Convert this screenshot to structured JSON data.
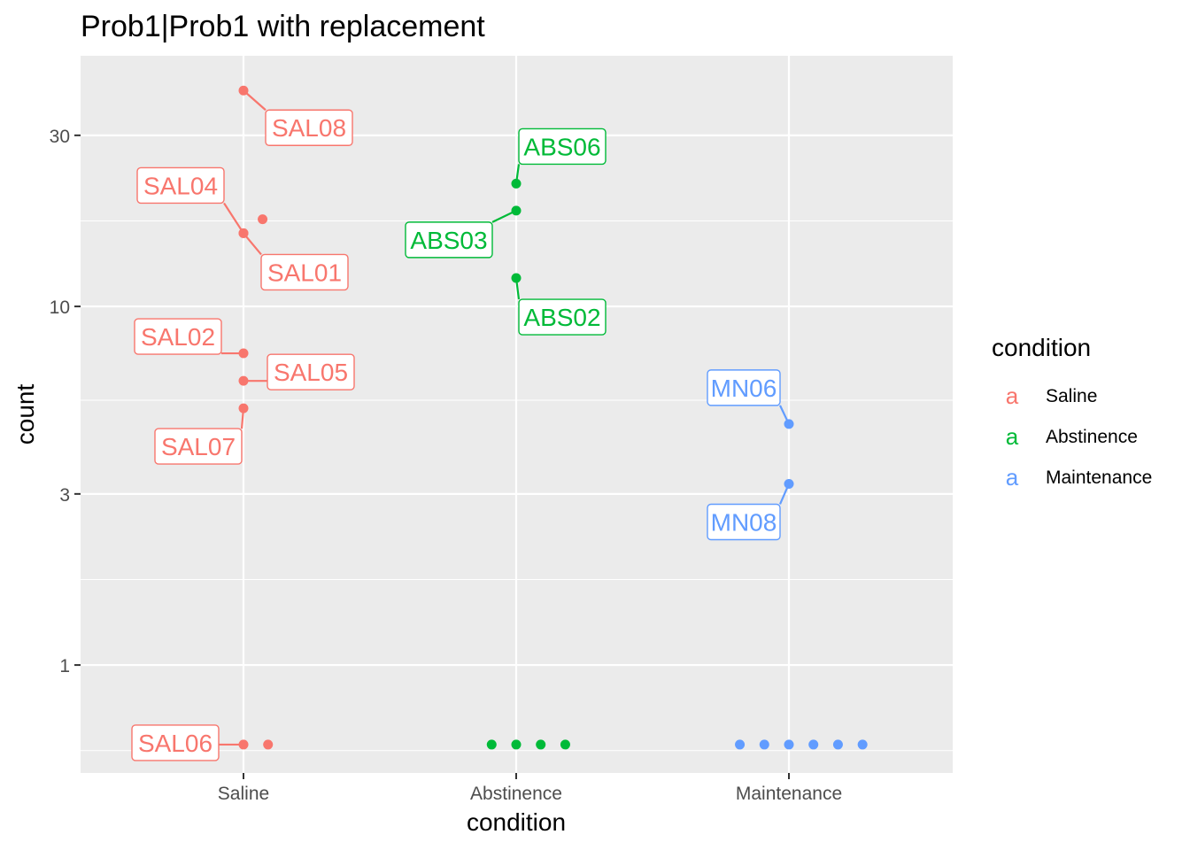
{
  "chart_data": {
    "type": "scatter",
    "title": "Prob1|Prob1 with replacement",
    "xlabel": "condition",
    "ylabel": "count",
    "y_scale": "log",
    "ylim": [
      0.5,
      50
    ],
    "y_ticks": [
      "1",
      "3",
      "10",
      "30"
    ],
    "categories": [
      "Saline",
      "Abstinence",
      "Maintenance"
    ],
    "legend": {
      "title": "condition",
      "position": "right",
      "key_glyph": "a",
      "entries": [
        "Saline",
        "Abstinence",
        "Maintenance"
      ]
    },
    "colors": {
      "Saline": "#F8766D",
      "Abstinence": "#00BA38",
      "Maintenance": "#619CFF",
      "panel_background": "#EBEBEB",
      "gridline": "#FFFFFF"
    },
    "series": [
      {
        "name": "Saline",
        "points": [
          {
            "category": "Saline",
            "jitter": 0,
            "y": 40,
            "label": "SAL08"
          },
          {
            "category": "Saline",
            "jitter": 0,
            "y": 16,
            "label": "SAL04"
          },
          {
            "category": "Saline",
            "jitter": 0,
            "y": 16,
            "label": "SAL01"
          },
          {
            "category": "Saline",
            "jitter": 0.07,
            "y": 17.5,
            "label": ""
          },
          {
            "category": "Saline",
            "jitter": 0,
            "y": 7.4,
            "label": "SAL02"
          },
          {
            "category": "Saline",
            "jitter": 0,
            "y": 6.2,
            "label": "SAL05"
          },
          {
            "category": "Saline",
            "jitter": 0,
            "y": 5.2,
            "label": "SAL07"
          },
          {
            "category": "Saline",
            "jitter": 0,
            "y": 0.6,
            "label": "SAL06"
          },
          {
            "category": "Saline",
            "jitter": 0.09,
            "y": 0.6,
            "label": ""
          }
        ]
      },
      {
        "name": "Abstinence",
        "points": [
          {
            "category": "Abstinence",
            "jitter": 0,
            "y": 22,
            "label": "ABS06"
          },
          {
            "category": "Abstinence",
            "jitter": 0,
            "y": 18.5,
            "label": "ABS03"
          },
          {
            "category": "Abstinence",
            "jitter": 0,
            "y": 12,
            "label": "ABS02"
          },
          {
            "category": "Abstinence",
            "jitter": -0.09,
            "y": 0.6,
            "label": ""
          },
          {
            "category": "Abstinence",
            "jitter": 0,
            "y": 0.6,
            "label": ""
          },
          {
            "category": "Abstinence",
            "jitter": 0.09,
            "y": 0.6,
            "label": ""
          },
          {
            "category": "Abstinence",
            "jitter": 0.18,
            "y": 0.6,
            "label": ""
          }
        ]
      },
      {
        "name": "Maintenance",
        "points": [
          {
            "category": "Maintenance",
            "jitter": 0,
            "y": 4.7,
            "label": "MN06"
          },
          {
            "category": "Maintenance",
            "jitter": 0,
            "y": 3.2,
            "label": "MN08"
          },
          {
            "category": "Maintenance",
            "jitter": -0.18,
            "y": 0.6,
            "label": ""
          },
          {
            "category": "Maintenance",
            "jitter": -0.09,
            "y": 0.6,
            "label": ""
          },
          {
            "category": "Maintenance",
            "jitter": 0,
            "y": 0.6,
            "label": ""
          },
          {
            "category": "Maintenance",
            "jitter": 0.09,
            "y": 0.6,
            "label": ""
          },
          {
            "category": "Maintenance",
            "jitter": 0.18,
            "y": 0.6,
            "label": ""
          },
          {
            "category": "Maintenance",
            "jitter": 0.27,
            "y": 0.6,
            "label": ""
          }
        ]
      }
    ]
  }
}
